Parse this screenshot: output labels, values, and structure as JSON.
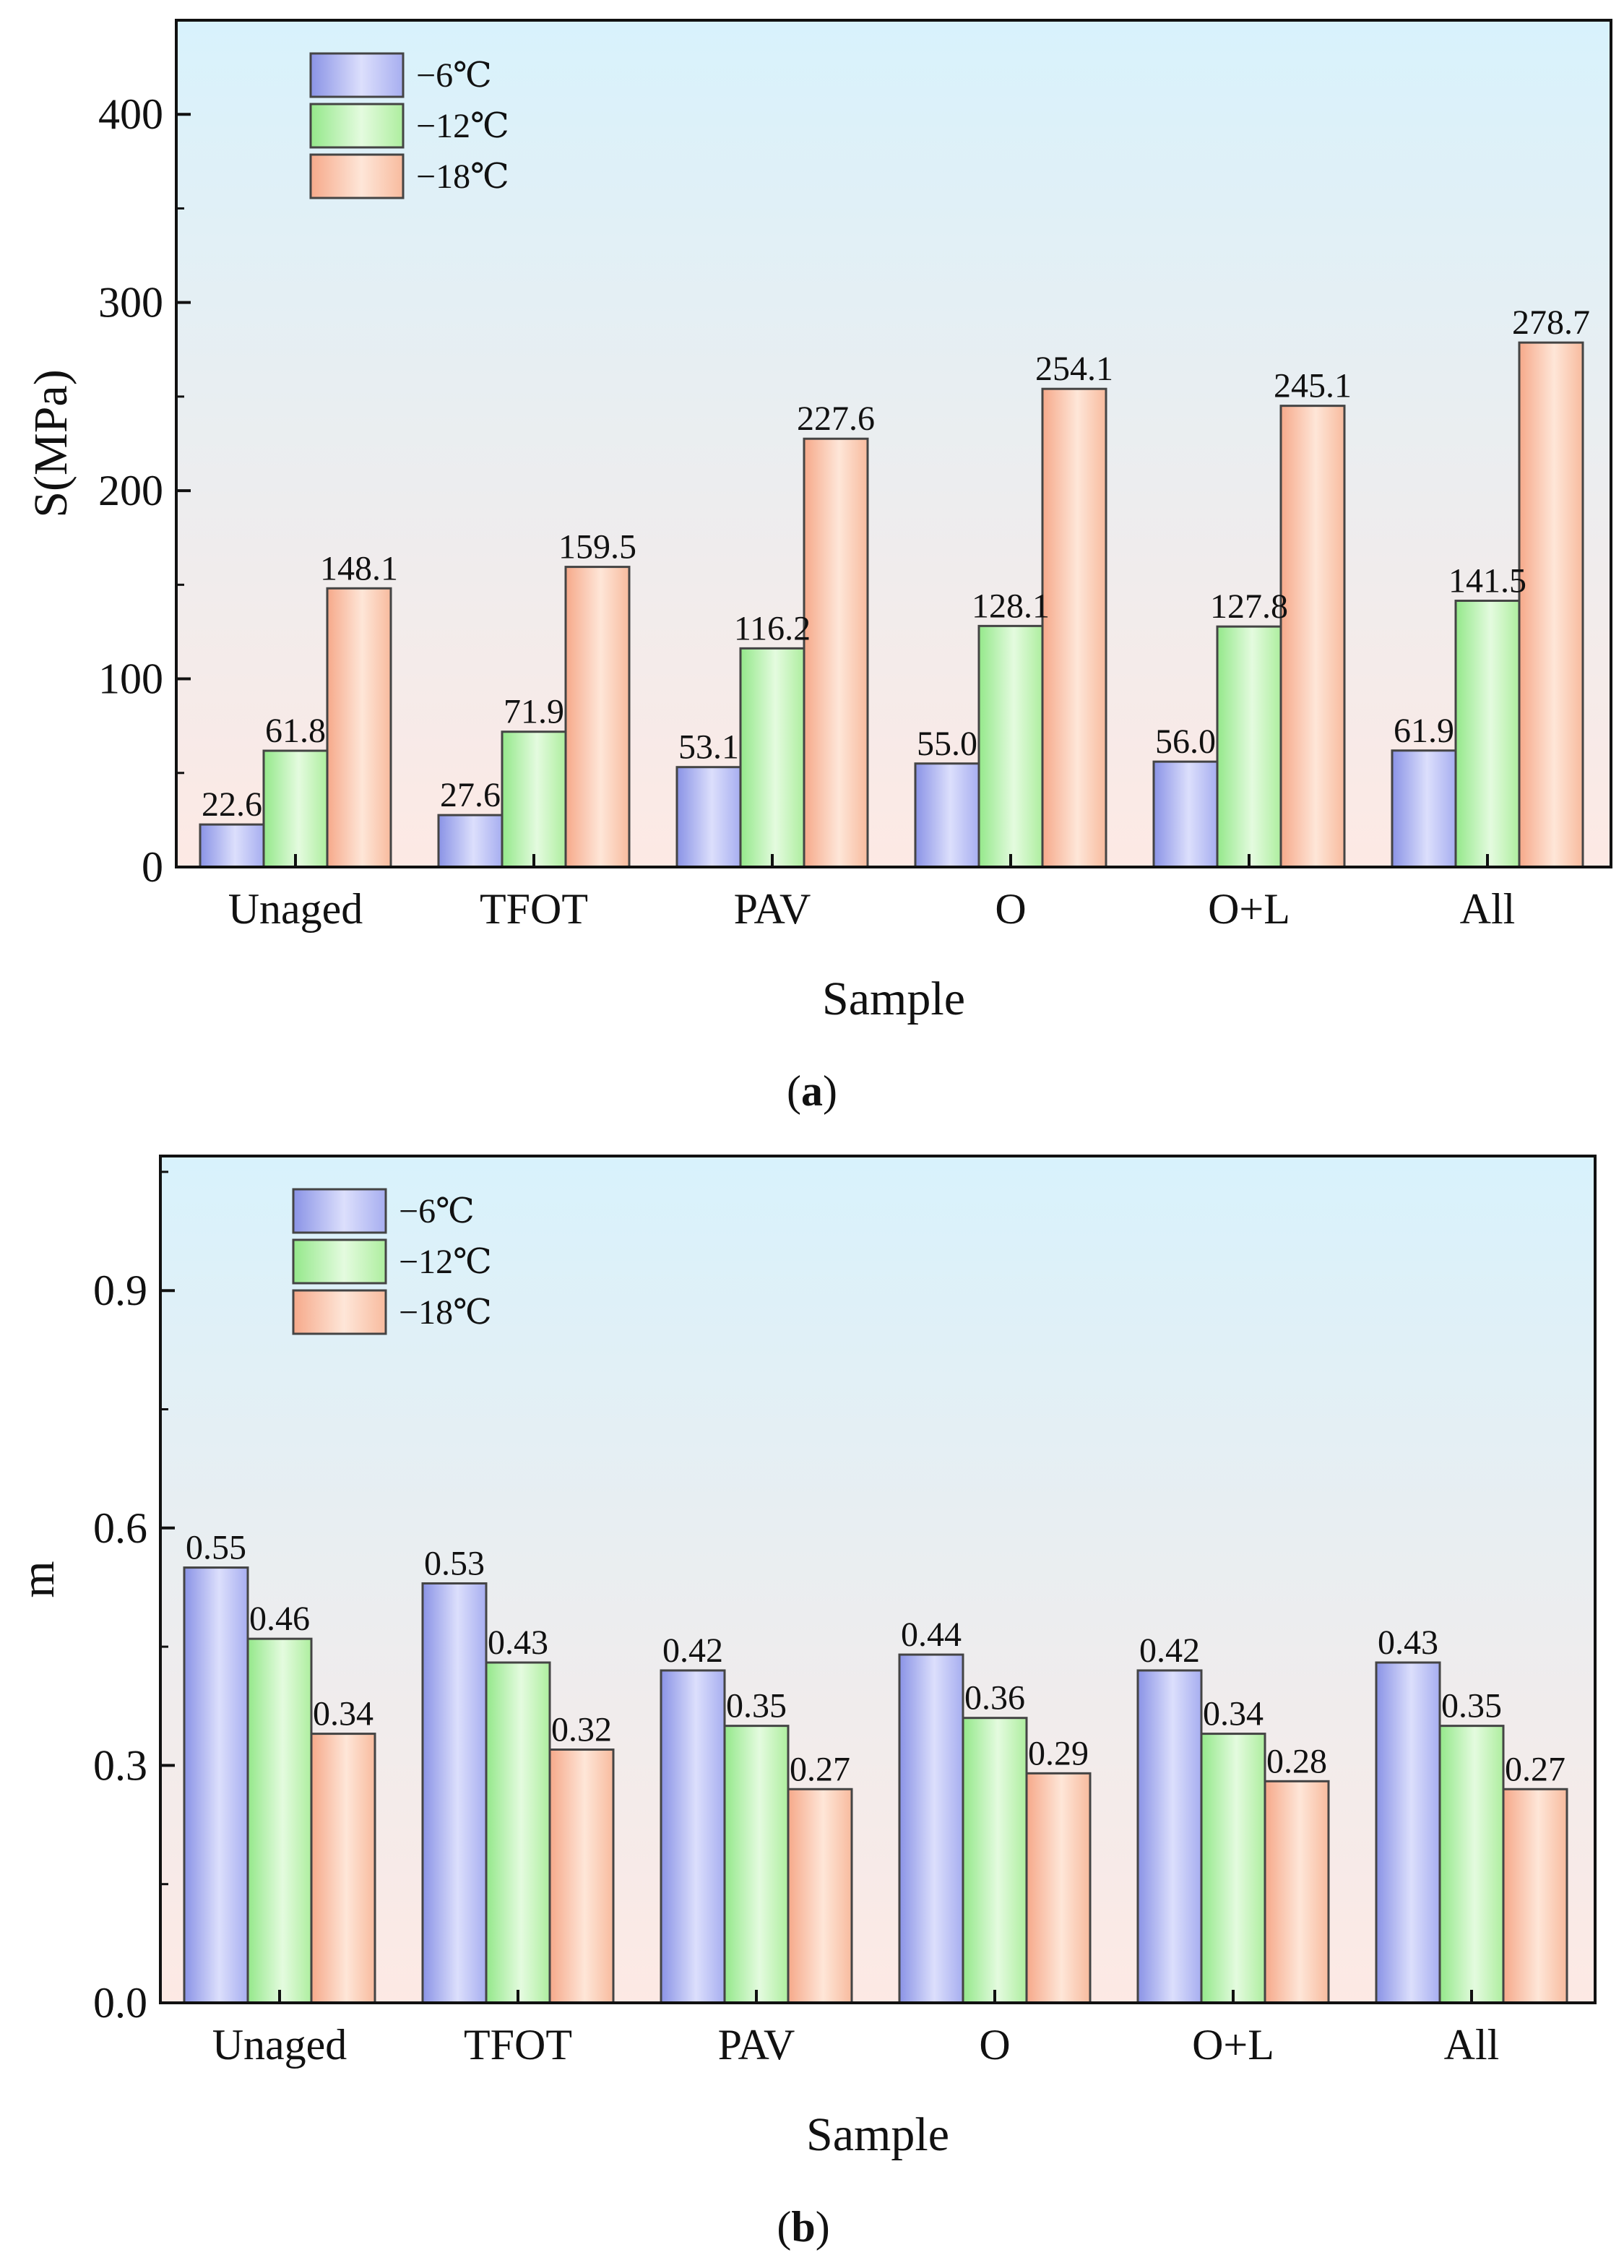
{
  "chart_data": [
    {
      "type": "bar",
      "panel": "a",
      "categories": [
        "Unaged",
        "TFOT",
        "PAV",
        "O",
        "O+L",
        "All"
      ],
      "series": [
        {
          "name": "−6℃",
          "values": [
            22.6,
            27.6,
            53.1,
            55.0,
            56.0,
            61.9
          ],
          "labels": [
            "22.6",
            "27.6",
            "53.1",
            "55.0",
            "56.0",
            "61.9"
          ],
          "color": "#b8bdf5"
        },
        {
          "name": "−12℃",
          "values": [
            61.8,
            71.9,
            116.2,
            128.1,
            127.8,
            141.5
          ],
          "labels": [
            "61.8",
            "71.9",
            "116.2",
            "128.1",
            "127.8",
            "141.5"
          ],
          "color": "#c6f5bd"
        },
        {
          "name": "−18℃",
          "values": [
            148.1,
            159.5,
            227.6,
            254.1,
            245.1,
            278.7
          ],
          "labels": [
            "148.1",
            "159.5",
            "227.6",
            "254.1",
            "245.1",
            "278.7"
          ],
          "color": "#fccbb0"
        }
      ],
      "xlabel": "Sample",
      "ylabel": "S(MPa)",
      "ylim": [
        0,
        450
      ],
      "yticks": [
        0,
        100,
        200,
        300,
        400
      ],
      "ytick_labels": [
        "0",
        "100",
        "200",
        "300",
        "400"
      ],
      "legend_position": "top-left",
      "caption_letter": "a"
    },
    {
      "type": "bar",
      "panel": "b",
      "categories": [
        "Unaged",
        "TFOT",
        "PAV",
        "O",
        "O+L",
        "All"
      ],
      "series": [
        {
          "name": "−6℃",
          "values": [
            0.55,
            0.53,
            0.42,
            0.44,
            0.42,
            0.43
          ],
          "labels": [
            "0.55",
            "0.53",
            "0.42",
            "0.44",
            "0.42",
            "0.43"
          ],
          "color": "#b8bdf5"
        },
        {
          "name": "−12℃",
          "values": [
            0.46,
            0.43,
            0.35,
            0.36,
            0.34,
            0.35
          ],
          "labels": [
            "0.46",
            "0.43",
            "0.35",
            "0.36",
            "0.34",
            "0.35"
          ],
          "color": "#c6f5bd"
        },
        {
          "name": "−18℃",
          "values": [
            0.34,
            0.32,
            0.27,
            0.29,
            0.28,
            0.27
          ],
          "labels": [
            "0.34",
            "0.32",
            "0.27",
            "0.29",
            "0.28",
            "0.27"
          ],
          "color": "#fccbb0"
        }
      ],
      "xlabel": "Sample",
      "ylabel": "m",
      "ylim": [
        0,
        1.07
      ],
      "yticks": [
        0,
        0.3,
        0.6,
        0.9
      ],
      "ytick_labels": [
        "0.0",
        "0.3",
        "0.6",
        "0.9"
      ],
      "legend_position": "top-left",
      "caption_letter": "b"
    }
  ],
  "colors": {
    "bg_top": "#d8f2fc",
    "bg_bottom": "#fde9e4",
    "axis": "#111111",
    "bar_edge": "#444444"
  }
}
